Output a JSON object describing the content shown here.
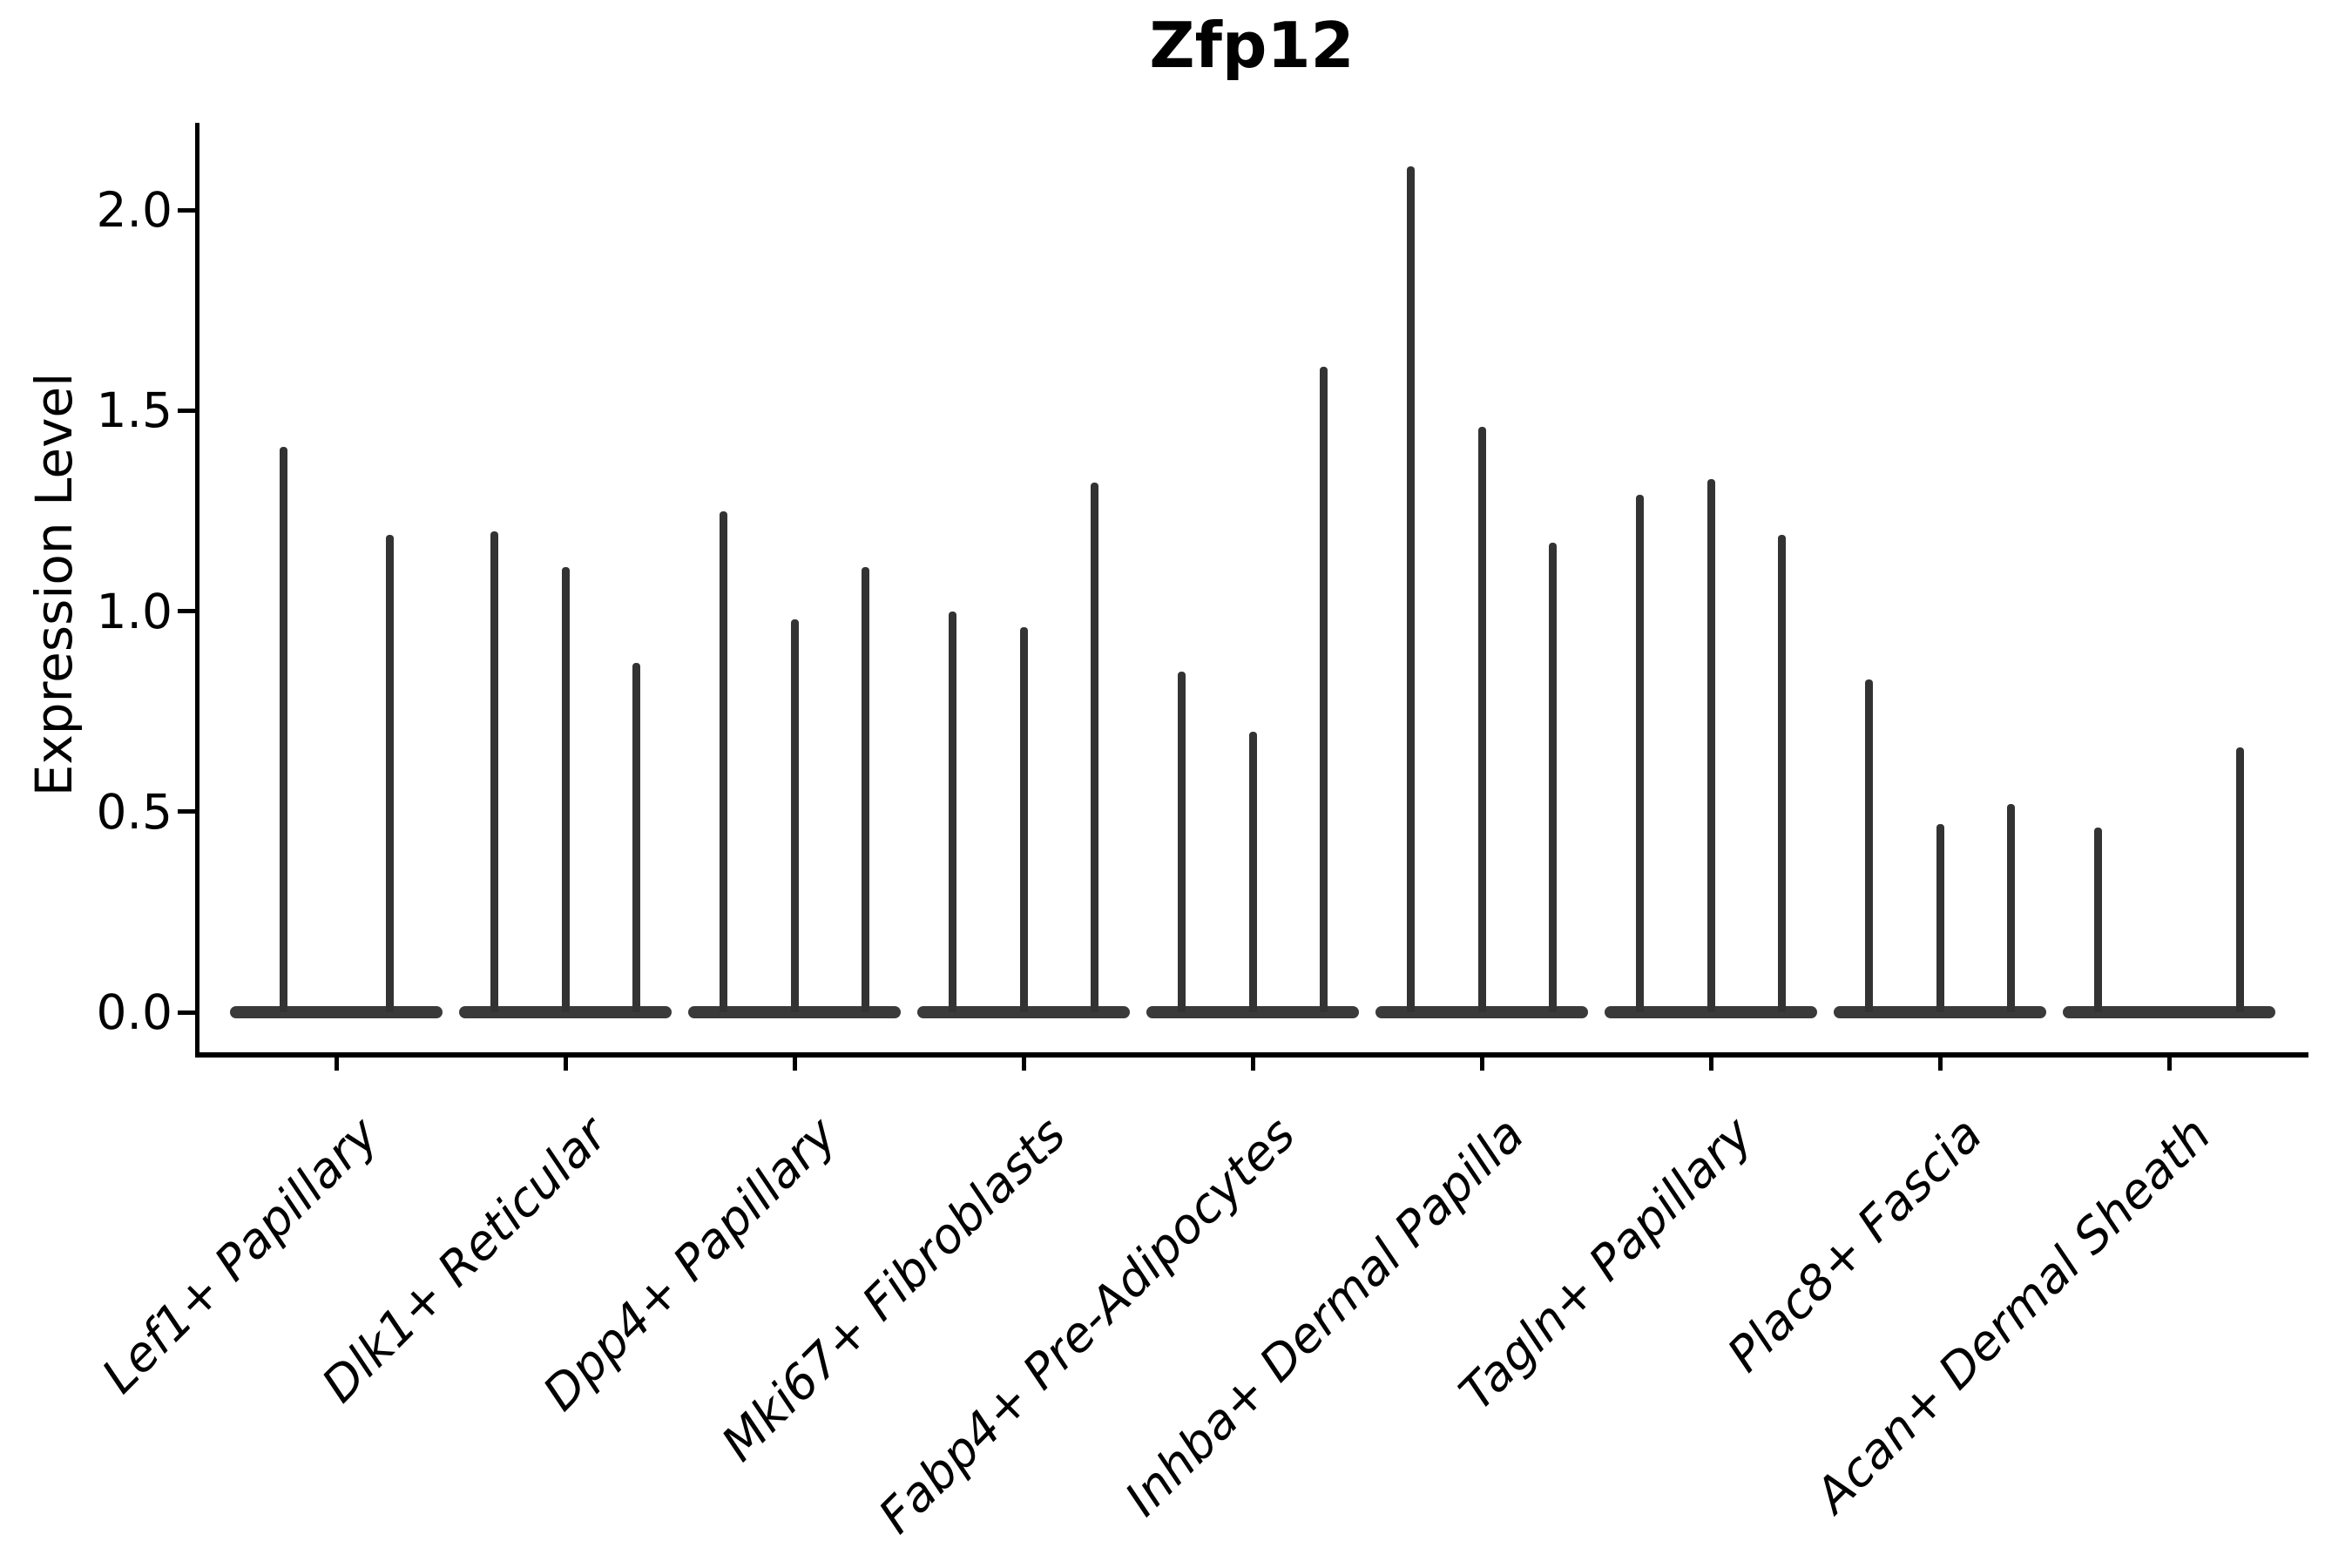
{
  "title": "Zfp12",
  "y_axis": {
    "label": "Expression Level",
    "ticks": [
      {
        "value": 0.0,
        "label": "0.0"
      },
      {
        "value": 0.5,
        "label": "0.5"
      },
      {
        "value": 1.0,
        "label": "1.0"
      },
      {
        "value": 1.5,
        "label": "1.5"
      },
      {
        "value": 2.0,
        "label": "2.0"
      }
    ]
  },
  "chart_data": {
    "type": "violin",
    "title": "Zfp12",
    "xlabel": "",
    "ylabel": "Expression Level",
    "ylim": [
      -0.11,
      2.22
    ],
    "grid": false,
    "legend": "none",
    "categories": [
      "Lef1+ Papillary",
      "Dlk1+ Reticular",
      "Dpp4+ Papillary",
      "Mki67+ Fibroblasts",
      "Fabp4+ Pre-Adipocytes",
      "Inhba+ Dermal Papilla",
      "Tagln+ Papillary",
      "Plac8+ Fascia",
      "Acan+ Dermal Sheath"
    ],
    "groups": [
      {
        "label": "Lef1+ Papillary",
        "violin_max_values": [
          1.41,
          1.19
        ]
      },
      {
        "label": "Dlk1+ Reticular",
        "violin_max_values": [
          1.2,
          1.11,
          0.87
        ]
      },
      {
        "label": "Dpp4+ Papillary",
        "violin_max_values": [
          1.25,
          0.98,
          1.11
        ]
      },
      {
        "label": "Mki67+ Fibroblasts",
        "violin_max_values": [
          1.0,
          0.96,
          1.32
        ]
      },
      {
        "label": "Fabp4+ Pre-Adipocytes",
        "violin_max_values": [
          0.85,
          0.7,
          1.61
        ]
      },
      {
        "label": "Inhba+ Dermal Papilla",
        "violin_max_values": [
          2.11,
          1.46,
          1.17
        ]
      },
      {
        "label": "Tagln+ Papillary",
        "violin_max_values": [
          1.29,
          1.33,
          1.19
        ]
      },
      {
        "label": "Plac8+ Fascia",
        "violin_max_values": [
          0.83,
          0.47,
          0.52
        ]
      },
      {
        "label": "Acan+ Dermal Sheath",
        "violin_max_values": [
          0.46,
          0.0,
          0.66
        ]
      }
    ],
    "colors": {
      "violin": "#333333",
      "axis": "#000000",
      "text": "#000000",
      "background": "#ffffff"
    }
  }
}
